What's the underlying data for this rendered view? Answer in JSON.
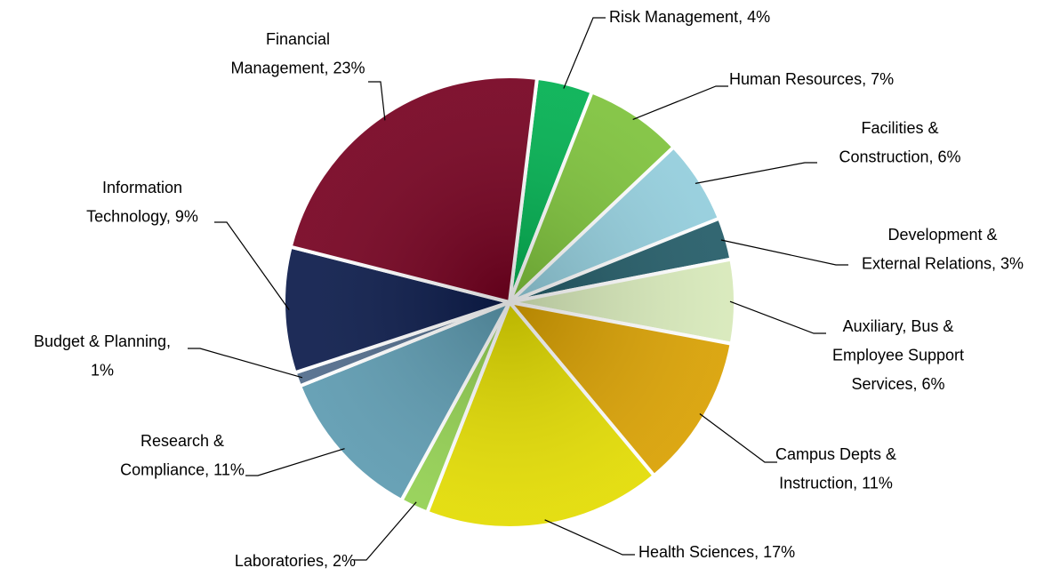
{
  "chart_data": {
    "type": "pie",
    "values": [
      4,
      7,
      6,
      3,
      6,
      11,
      17,
      2,
      11,
      1,
      9,
      23
    ],
    "value_labels": [
      [
        "Risk Management, 4%"
      ],
      [
        "Human Resources, 7%"
      ],
      [
        "Facilities &",
        "Construction, 6%"
      ],
      [
        "Development &",
        "External Relations, 3%"
      ],
      [
        "Auxiliary, Bus &",
        "Employee Support",
        "Services, 6%"
      ],
      [
        "Campus Depts &",
        "Instruction, 11%"
      ],
      [
        "Health Sciences, 17%"
      ],
      [
        "Laboratories, 2%"
      ],
      [
        "Research &",
        "Compliance, 11%"
      ],
      [
        "Budget & Planning,",
        "1%"
      ],
      [
        "Information",
        "Technology, 9%"
      ],
      [
        "Financial",
        "Management, 23%"
      ]
    ],
    "colors": [
      "#00b050",
      "#7dc23a",
      "#92cddc",
      "#215a66",
      "#d7e9b9",
      "#d9a000",
      "#e3dc00",
      "#92d050",
      "#5c9ab0",
      "#4f6a8a",
      "#0a1a4a",
      "#75001f"
    ]
  }
}
